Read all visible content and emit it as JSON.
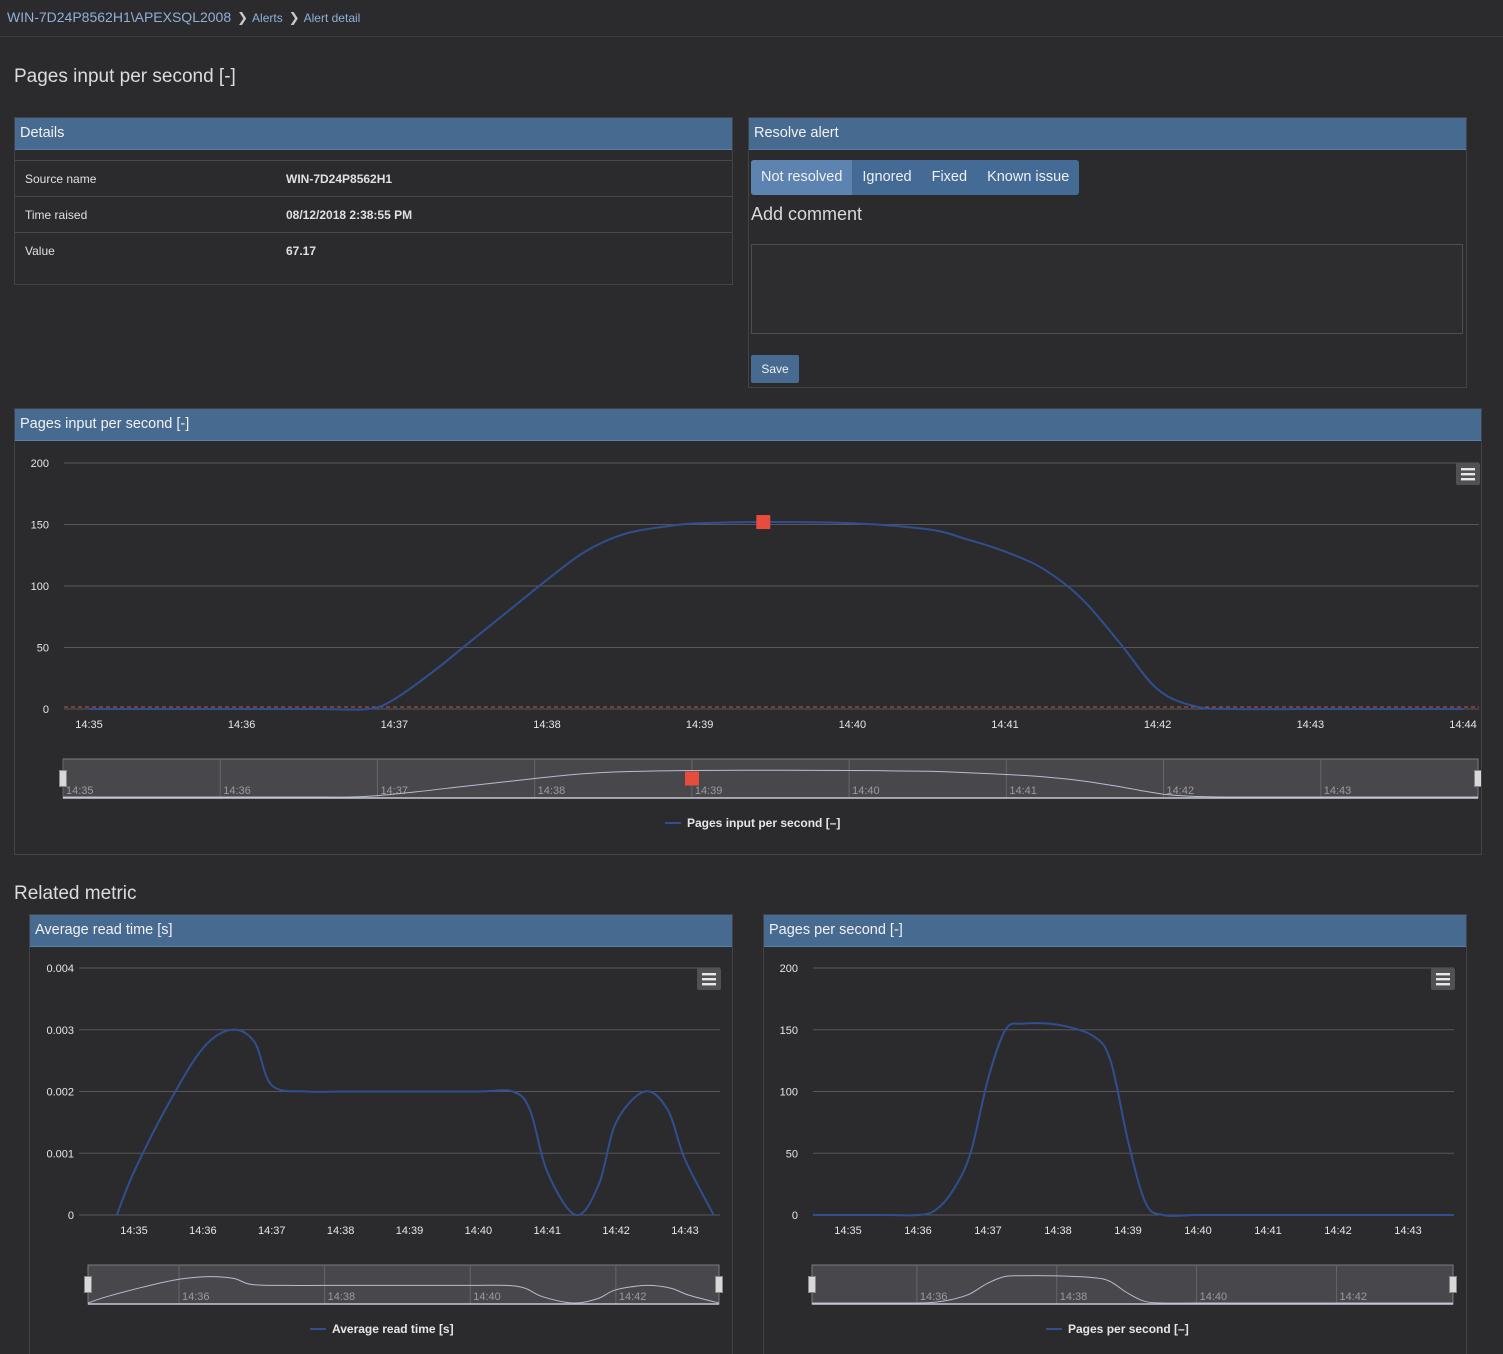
{
  "breadcrumb": {
    "server": "WIN-7D24P8562H1\\APEXSQL2008",
    "alerts": "Alerts",
    "detail": "Alert detail"
  },
  "page_title": "Pages input per second [-]",
  "details": {
    "title": "Details",
    "rows": [
      {
        "label": "Source name",
        "value": "WIN-7D24P8562H1"
      },
      {
        "label": "Time raised",
        "value": "08/12/2018 2:38:55 PM"
      },
      {
        "label": "Value",
        "value": "67.17"
      }
    ]
  },
  "resolve": {
    "title": "Resolve alert",
    "options": [
      "Not resolved",
      "Ignored",
      "Fixed",
      "Known issue"
    ],
    "selected": "Not resolved",
    "add_comment_label": "Add comment",
    "comment_value": "",
    "save_label": "Save"
  },
  "related_metric_title": "Related metric",
  "icons": {
    "breadcrumb_separator": "chevron-right-icon",
    "chart_menu": "hamburger-menu-icon",
    "navigator_handle": "drag-handle-icon",
    "alert_marker": "red-square-marker-icon"
  },
  "colors": {
    "series": "#2f4f8f",
    "alert_marker": "#e74c3c",
    "threshold": "#c0504d",
    "header": "#476a91"
  },
  "chart_data": [
    {
      "id": "main",
      "type": "line",
      "title": "Pages input per second [-]",
      "series": [
        {
          "name": "Pages input per second [–]",
          "x": [
            "14:35",
            "14:35:30",
            "14:36",
            "14:36:30",
            "14:36:50",
            "14:37",
            "14:37:15",
            "14:37:30",
            "14:37:45",
            "14:38",
            "14:38:15",
            "14:38:30",
            "14:38:45",
            "14:39",
            "14:39:30",
            "14:40",
            "14:40:30",
            "14:40:45",
            "14:41",
            "14:41:15",
            "14:41:30",
            "14:41:45",
            "14:42",
            "14:42:15",
            "14:42:30",
            "14:43",
            "14:43:30",
            "14:44"
          ],
          "values": [
            0,
            0,
            0,
            0,
            0,
            8,
            30,
            55,
            80,
            105,
            128,
            142,
            148,
            151,
            152,
            151,
            146,
            138,
            128,
            114,
            90,
            54,
            16,
            2,
            0,
            0,
            0,
            0
          ]
        }
      ],
      "marker": {
        "x": "14:39:25",
        "value": 152
      },
      "threshold": 0,
      "x_ticks": [
        "14:35",
        "14:36",
        "14:37",
        "14:38",
        "14:39",
        "14:40",
        "14:41",
        "14:42",
        "14:43",
        "14:44"
      ],
      "y_ticks": [
        0,
        50,
        100,
        150,
        200
      ],
      "ylim": [
        0,
        200
      ],
      "navigator_labels": [
        "14:35",
        "14:36",
        "14:37",
        "14:38",
        "14:39",
        "14:40",
        "14:41",
        "14:42",
        "14:43"
      ],
      "legend_position": "bottom-center"
    },
    {
      "id": "read",
      "type": "line",
      "title": "Average read time [s]",
      "series": [
        {
          "name": "Average read time [s]",
          "x": [
            "14:34:45",
            "14:35",
            "14:35:30",
            "14:36",
            "14:36:25",
            "14:36:45",
            "14:37",
            "14:37:30",
            "14:38",
            "14:39",
            "14:40",
            "14:40:30",
            "14:40:45",
            "14:41",
            "14:41:25",
            "14:41:45",
            "14:42",
            "14:42:25",
            "14:42:45",
            "14:43",
            "14:43:25"
          ],
          "values": [
            0,
            0.0007,
            0.0018,
            0.0027,
            0.003,
            0.0028,
            0.0021,
            0.002,
            0.002,
            0.002,
            0.002,
            0.002,
            0.0017,
            0.0007,
            0,
            0.0005,
            0.0015,
            0.002,
            0.0017,
            0.0009,
            0
          ]
        }
      ],
      "x_ticks": [
        "14:35",
        "14:36",
        "14:37",
        "14:38",
        "14:39",
        "14:40",
        "14:41",
        "14:42",
        "14:43"
      ],
      "y_ticks": [
        "0",
        "0.001",
        "0.002",
        "0.003",
        "0.004"
      ],
      "ylim": [
        0,
        0.004
      ],
      "navigator_labels": [
        "14:36",
        "14:38",
        "14:40",
        "14:42"
      ],
      "legend_position": "bottom-center"
    },
    {
      "id": "pages",
      "type": "line",
      "title": "Pages per second [-]",
      "series": [
        {
          "name": "Pages per second [–]",
          "x": [
            "14:34:30",
            "14:35",
            "14:35:30",
            "14:36",
            "14:36:15",
            "14:36:30",
            "14:36:45",
            "14:37",
            "14:37:15",
            "14:37:30",
            "14:38",
            "14:38:30",
            "14:38:45",
            "14:39",
            "14:39:15",
            "14:39:30",
            "14:40",
            "14:41",
            "14:42",
            "14:43",
            "14:43:40"
          ],
          "values": [
            0,
            0,
            0,
            0,
            4,
            20,
            50,
            110,
            150,
            155,
            154,
            145,
            125,
            60,
            10,
            0,
            0,
            0,
            0,
            0,
            0
          ]
        }
      ],
      "x_ticks": [
        "14:35",
        "14:36",
        "14:37",
        "14:38",
        "14:39",
        "14:40",
        "14:41",
        "14:42",
        "14:43"
      ],
      "y_ticks": [
        0,
        50,
        100,
        150,
        200
      ],
      "ylim": [
        0,
        200
      ],
      "navigator_labels": [
        "14:36",
        "14:38",
        "14:40",
        "14:42"
      ],
      "legend_position": "bottom-center"
    }
  ]
}
